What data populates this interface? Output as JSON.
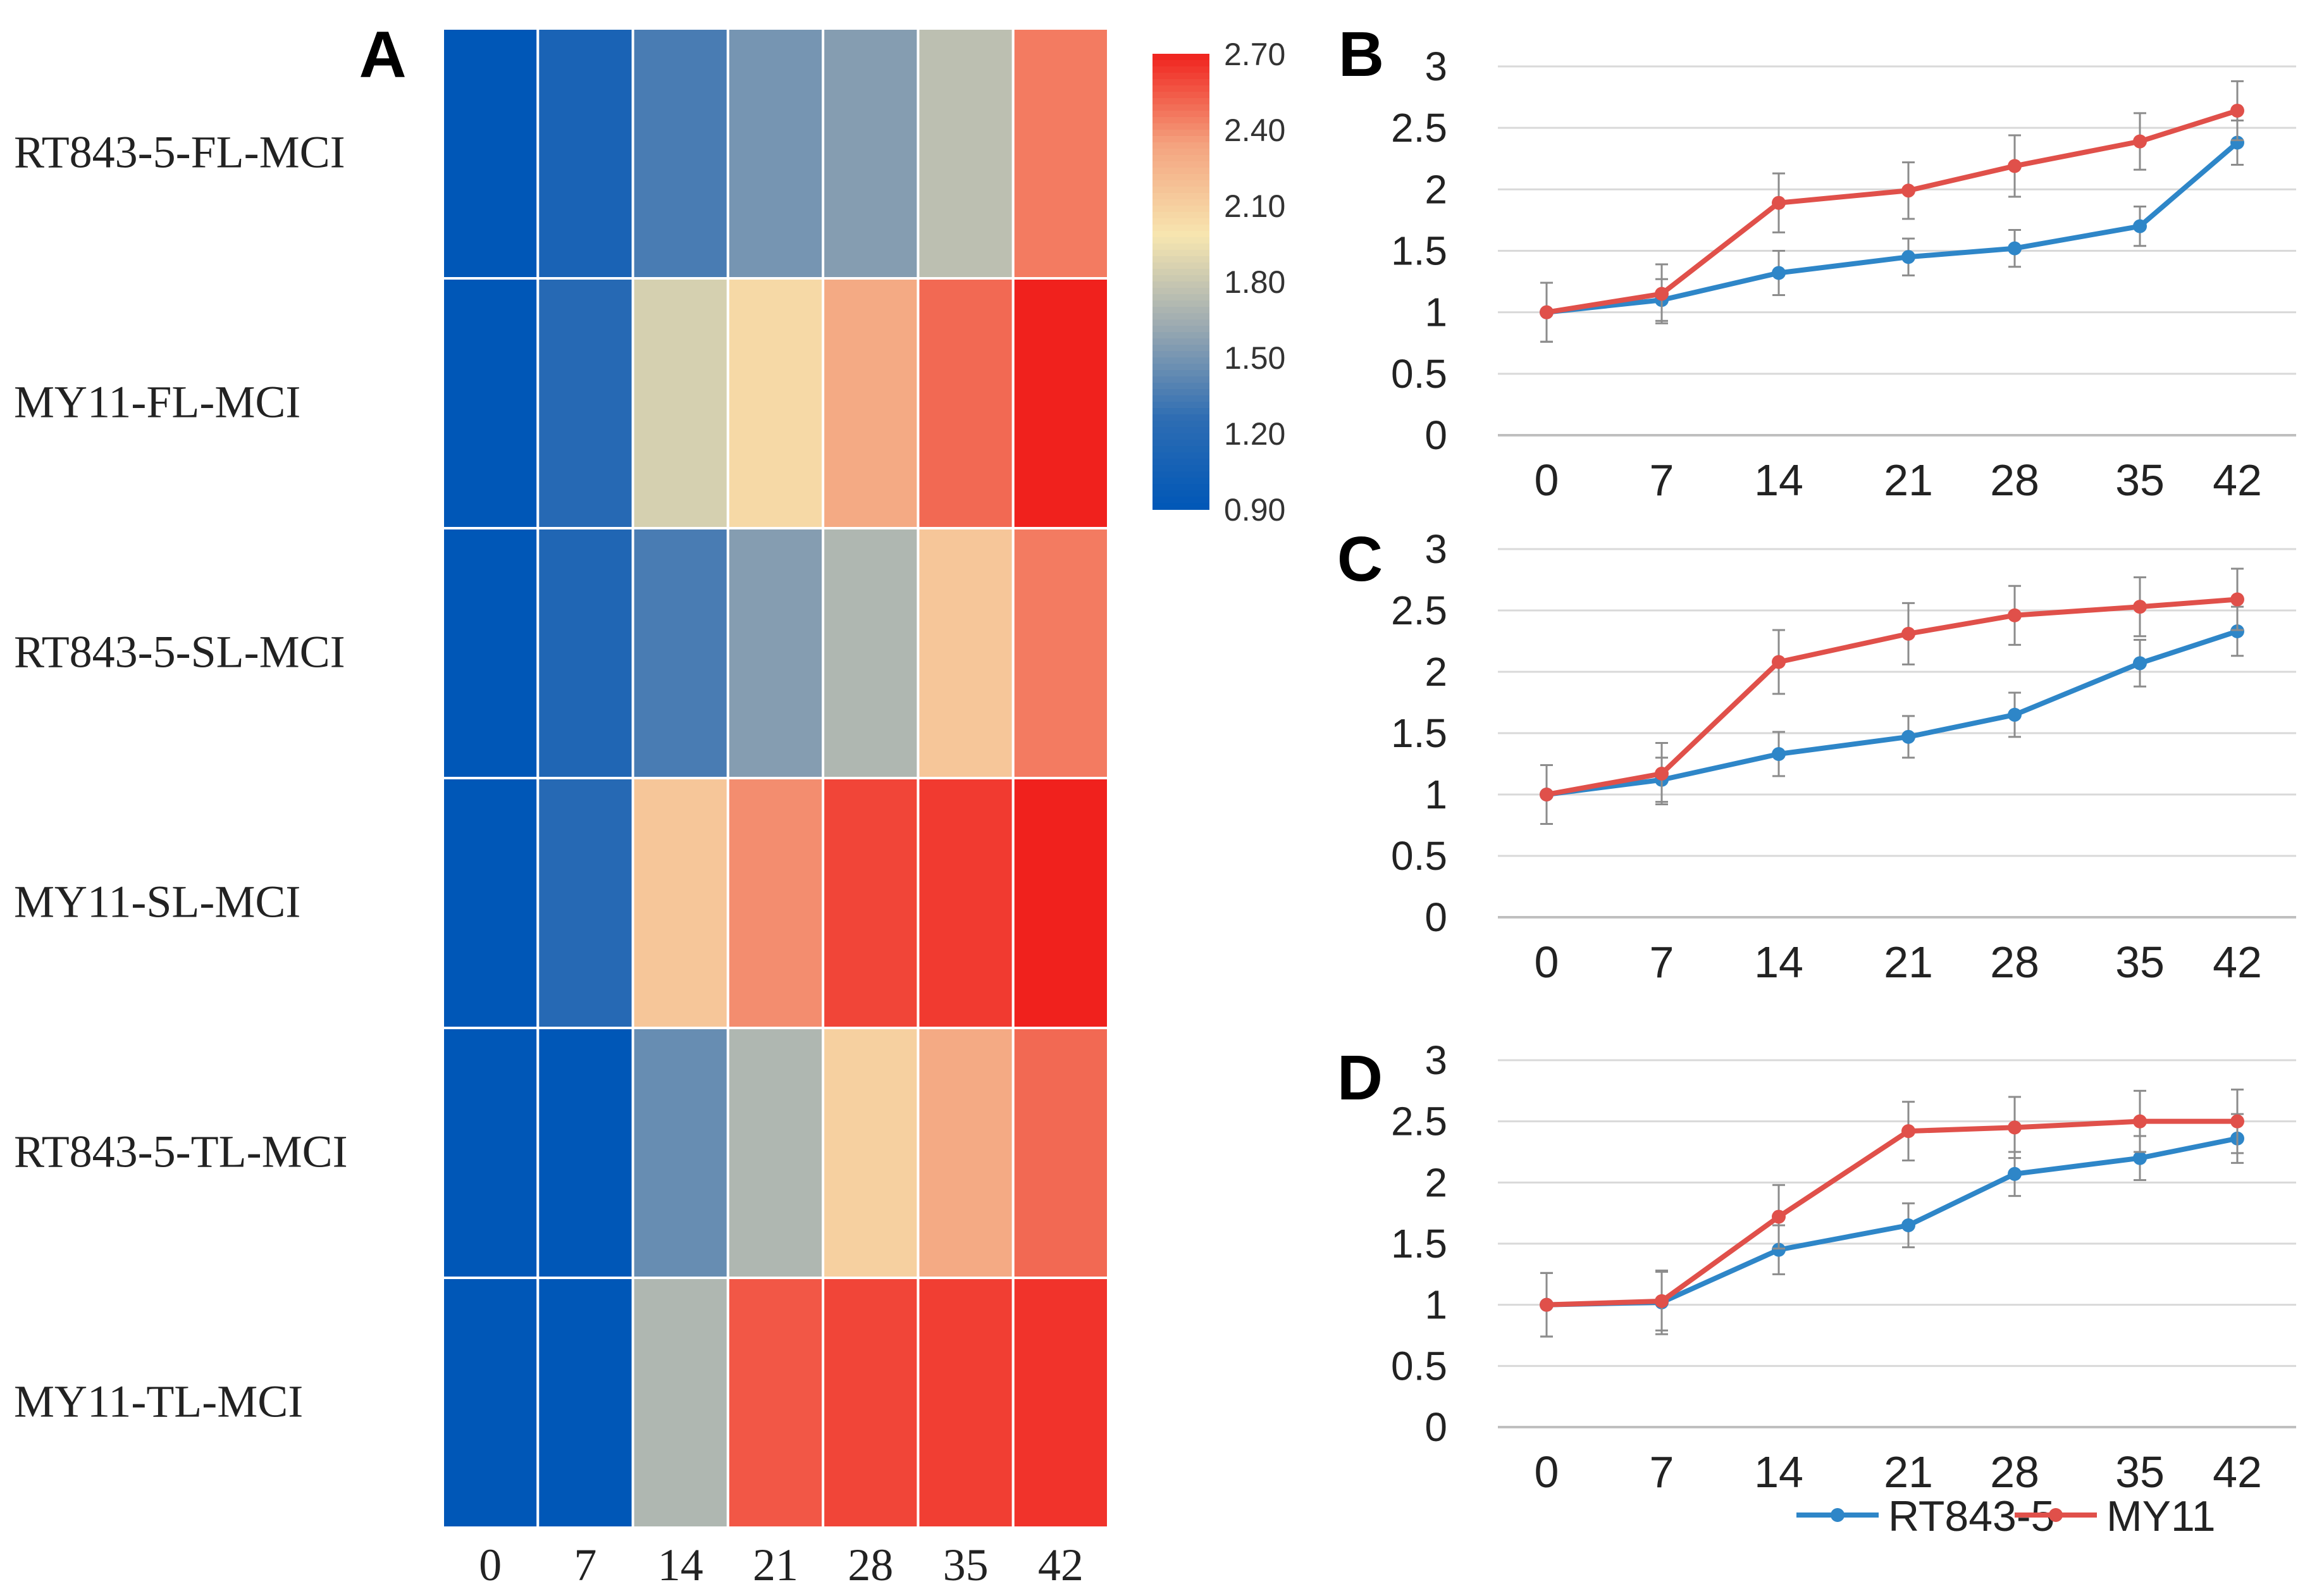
{
  "chart_data": [
    {
      "type": "heatmap",
      "panel_label": "A",
      "rows": [
        "RT843-5-FL-MCI",
        "MY11-FL-MCI",
        "RT843-5-SL-MCI",
        "MY11-SL-MCI",
        "RT843-5-TL-MCI",
        "MY11-TL-MCI"
      ],
      "columns": [
        "0",
        "7",
        "14",
        "21",
        "28",
        "35",
        "42"
      ],
      "values": [
        [
          0.9,
          1.1,
          1.35,
          1.5,
          1.55,
          1.75,
          2.45
        ],
        [
          0.9,
          1.2,
          1.85,
          2.05,
          2.3,
          2.5,
          2.7
        ],
        [
          0.9,
          1.15,
          1.35,
          1.55,
          1.7,
          2.15,
          2.45
        ],
        [
          0.9,
          1.2,
          2.15,
          2.4,
          2.6,
          2.63,
          2.7
        ],
        [
          0.9,
          0.9,
          1.45,
          1.7,
          2.1,
          2.3,
          2.5
        ],
        [
          0.9,
          0.9,
          1.7,
          2.55,
          2.6,
          2.62,
          2.65
        ]
      ],
      "colorbar": {
        "min": 0.9,
        "max": 2.7,
        "ticks": [
          "2.70",
          "2.40",
          "2.10",
          "1.80",
          "1.50",
          "1.20",
          "0.90"
        ],
        "colors": [
          "#0057b7",
          "#2e6db3",
          "#9aa9b1",
          "#f7e6b0",
          "#f4a37f",
          "#f0211d"
        ]
      }
    },
    {
      "type": "line",
      "panel_label": "B",
      "x": [
        "0",
        "7",
        "14",
        "21",
        "28",
        "35",
        "42"
      ],
      "ylim": [
        0,
        3
      ],
      "yticks": [
        "3",
        "2.5",
        "2",
        "1.5",
        "1",
        "0.5",
        "0"
      ],
      "series": [
        {
          "name": "RT843-5",
          "color": "#2e86c8",
          "values": [
            1.0,
            1.1,
            1.32,
            1.45,
            1.52,
            1.7,
            2.38
          ],
          "errors": [
            0.24,
            0.17,
            0.18,
            0.15,
            0.15,
            0.16,
            0.18
          ]
        },
        {
          "name": "MY11",
          "color": "#e0504a",
          "values": [
            1.0,
            1.15,
            1.89,
            1.99,
            2.19,
            2.39,
            2.64
          ],
          "errors": [
            0.24,
            0.24,
            0.24,
            0.23,
            0.25,
            0.23,
            0.24
          ]
        }
      ]
    },
    {
      "type": "line",
      "panel_label": "C",
      "x": [
        "0",
        "7",
        "14",
        "21",
        "28",
        "35",
        "42"
      ],
      "ylim": [
        0,
        3
      ],
      "yticks": [
        "3",
        "2.5",
        "2",
        "1.5",
        "1",
        "0.5",
        "0"
      ],
      "series": [
        {
          "name": "RT843-5",
          "color": "#2e86c8",
          "values": [
            1.0,
            1.12,
            1.33,
            1.47,
            1.65,
            2.07,
            2.33
          ],
          "errors": [
            0.24,
            0.18,
            0.18,
            0.17,
            0.18,
            0.19,
            0.2
          ]
        },
        {
          "name": "MY11",
          "color": "#e0504a",
          "values": [
            1.0,
            1.17,
            2.08,
            2.31,
            2.46,
            2.53,
            2.59
          ],
          "errors": [
            0.24,
            0.25,
            0.26,
            0.25,
            0.24,
            0.24,
            0.25
          ]
        }
      ]
    },
    {
      "type": "line",
      "panel_label": "D",
      "x": [
        "0",
        "7",
        "14",
        "21",
        "28",
        "35",
        "42"
      ],
      "ylim": [
        0,
        3
      ],
      "yticks": [
        "3",
        "2.5",
        "2",
        "1.5",
        "1",
        "0.5",
        "0"
      ],
      "series": [
        {
          "name": "RT843-5",
          "color": "#2e86c8",
          "values": [
            1.0,
            1.02,
            1.45,
            1.65,
            2.07,
            2.2,
            2.36
          ],
          "errors": [
            0.26,
            0.26,
            0.2,
            0.18,
            0.18,
            0.18,
            0.2
          ]
        },
        {
          "name": "MY11",
          "color": "#e0504a",
          "values": [
            1.0,
            1.03,
            1.72,
            2.42,
            2.45,
            2.5,
            2.5
          ],
          "errors": [
            0.26,
            0.24,
            0.26,
            0.24,
            0.25,
            0.25,
            0.26
          ]
        }
      ]
    }
  ],
  "legend": {
    "items": [
      {
        "label": "RT843-5",
        "color": "#2e86c8"
      },
      {
        "label": "MY11",
        "color": "#e0504a"
      }
    ]
  }
}
